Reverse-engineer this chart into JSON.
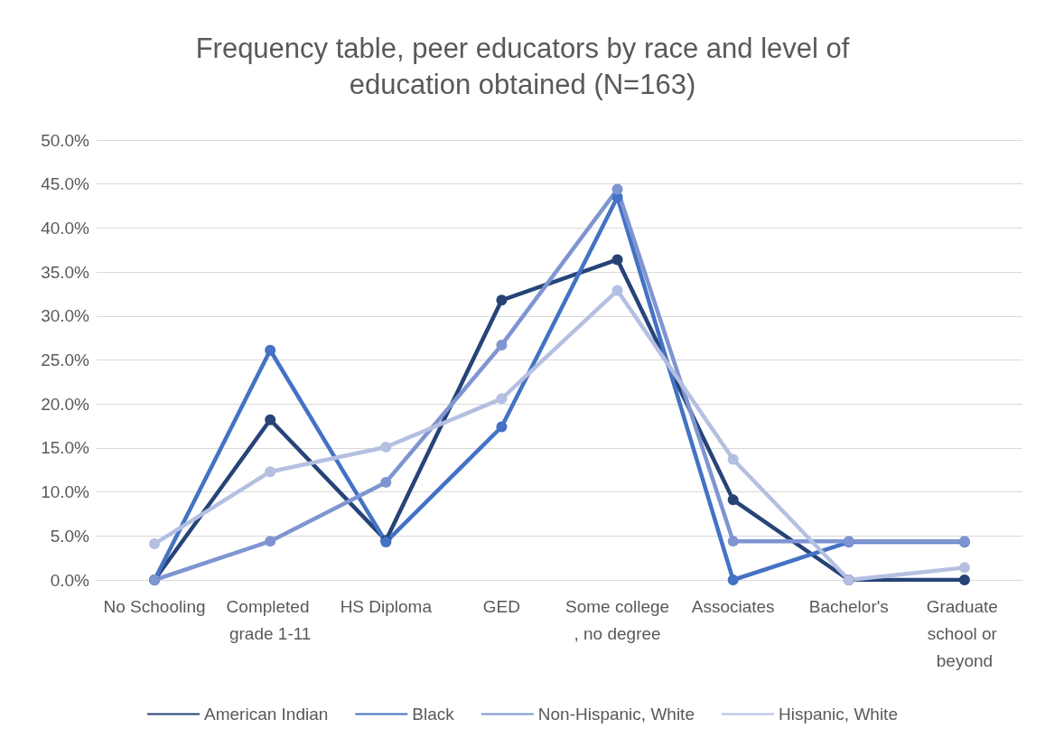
{
  "chart_data": {
    "type": "line",
    "title": "Frequency table, peer educators by race and level of\neducation obtained (N=163)",
    "categories": [
      "No Schooling",
      "Completed grade 1-11",
      "HS Diploma",
      "GED",
      "Some college, no degree",
      "Associates",
      "Bachelor's",
      "Graduate school or beyond"
    ],
    "series": [
      {
        "name": "American Indian",
        "color": "#264478",
        "values": [
          0,
          18.2,
          4.5,
          31.8,
          36.4,
          9.1,
          0,
          0
        ]
      },
      {
        "name": "Black",
        "color": "#4472c4",
        "values": [
          0,
          26.1,
          4.3,
          17.4,
          43.5,
          0,
          4.3,
          4.3
        ]
      },
      {
        "name": "Non-Hispanic, White",
        "color": "#7e95d1",
        "values": [
          0,
          4.4,
          11.1,
          26.7,
          44.4,
          4.4,
          4.4,
          4.4
        ]
      },
      {
        "name": "Hispanic, White",
        "color": "#b4bfe1",
        "values": [
          4.1,
          12.3,
          15.1,
          20.6,
          32.9,
          13.7,
          0,
          1.4
        ]
      }
    ],
    "ylim": [
      0,
      50
    ],
    "yticks": [
      {
        "value": 0,
        "label": "0.0%"
      },
      {
        "value": 5,
        "label": "5.0%"
      },
      {
        "value": 10,
        "label": "10.0%"
      },
      {
        "value": 15,
        "label": "15.0%"
      },
      {
        "value": 20,
        "label": "20.0%"
      },
      {
        "value": 25,
        "label": "25.0%"
      },
      {
        "value": 30,
        "label": "30.0%"
      },
      {
        "value": 35,
        "label": "35.0%"
      },
      {
        "value": 40,
        "label": "40.0%"
      },
      {
        "value": 45,
        "label": "45.0%"
      },
      {
        "value": 50,
        "label": "50.0%"
      }
    ],
    "grid": "y",
    "legend": "bottom",
    "marker": "circle",
    "line_style": "solid"
  }
}
